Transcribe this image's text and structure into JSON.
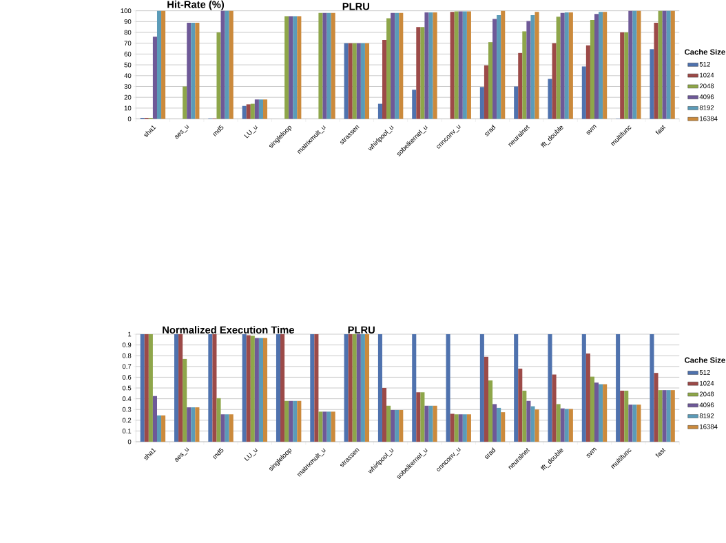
{
  "chart_data": [
    {
      "type": "bar",
      "title": "Hit-Rate (%)",
      "subtitle": "PLRU",
      "legend_title": "Cache Size",
      "legend": "right",
      "grid": "y",
      "categories": [
        "sha1",
        "aes_u",
        "md5",
        "LU_u",
        "singleloop",
        "matrixmult_u",
        "strassen",
        "whirlpool_u",
        "sobelkernel_u",
        "cnnconv_u",
        "srad",
        "neuralnet",
        "fft_double",
        "svm",
        "multifunc",
        "fast"
      ],
      "ylim": [
        0,
        100
      ],
      "yticks": [
        0,
        10,
        20,
        30,
        40,
        50,
        60,
        70,
        80,
        90,
        100
      ],
      "series": [
        {
          "name": "512",
          "color": "#4f72ae",
          "values": [
            1,
            0,
            0.5,
            12,
            0,
            0,
            70,
            14,
            27,
            0,
            29.5,
            30,
            37,
            48.5,
            0.3,
            64.5
          ]
        },
        {
          "name": "1024",
          "color": "#9c4a48",
          "values": [
            1,
            0,
            0.5,
            13.5,
            0,
            0,
            70,
            73,
            85,
            99,
            49.5,
            61,
            70,
            68,
            80,
            89
          ]
        },
        {
          "name": "2048",
          "color": "#8ea64a",
          "values": [
            1,
            30,
            80,
            14,
            95,
            98,
            70,
            93,
            85,
            99.5,
            71,
            81,
            94.5,
            91.5,
            80,
            100
          ]
        },
        {
          "name": "4096",
          "color": "#6e5998",
          "values": [
            76,
            89,
            100,
            18,
            95,
            98,
            70,
            98,
            98.5,
            99.5,
            92.5,
            90.5,
            98,
            97,
            100,
            100
          ]
        },
        {
          "name": "8192",
          "color": "#5b9bb8",
          "values": [
            100,
            89,
            100,
            18,
            95,
            98,
            70,
            98,
            98.5,
            99.5,
            96,
            96,
            98.5,
            99,
            100,
            100
          ]
        },
        {
          "name": "16384",
          "color": "#cb8a3c",
          "values": [
            100,
            89,
            100,
            18,
            95,
            98,
            70,
            98,
            98.5,
            99.5,
            100,
            99,
            98.5,
            99,
            100,
            100
          ]
        }
      ]
    },
    {
      "type": "bar",
      "title": "Normalized Execution Time",
      "subtitle": "PLRU",
      "legend_title": "Cache Size",
      "legend": "right",
      "grid": "y",
      "categories": [
        "sha1",
        "aes_u",
        "md5",
        "LU_u",
        "singleloop",
        "matrixmult_u",
        "strassen",
        "whirlpool_u",
        "sobelkernel_u",
        "cnnconv_u",
        "srad",
        "neuralnet",
        "fft_double",
        "svm",
        "multifunc",
        "fast"
      ],
      "ylim": [
        0,
        1
      ],
      "yticks": [
        0,
        0.1,
        0.2,
        0.3,
        0.4,
        0.5,
        0.6,
        0.7,
        0.8,
        0.9,
        1
      ],
      "series": [
        {
          "name": "512",
          "color": "#4f72ae",
          "values": [
            1,
            1,
            1,
            1,
            1,
            1,
            1,
            1,
            1,
            1,
            1,
            1,
            1,
            1,
            1,
            1
          ]
        },
        {
          "name": "1024",
          "color": "#9c4a48",
          "values": [
            1,
            1,
            1,
            0.99,
            1,
            1,
            1,
            0.5,
            0.46,
            0.26,
            0.79,
            0.68,
            0.625,
            0.82,
            0.475,
            0.64
          ]
        },
        {
          "name": "2048",
          "color": "#8ea64a",
          "values": [
            1,
            0.77,
            0.405,
            0.985,
            0.38,
            0.28,
            1,
            0.335,
            0.46,
            0.255,
            0.57,
            0.475,
            0.35,
            0.605,
            0.475,
            0.48
          ]
        },
        {
          "name": "4096",
          "color": "#6e5998",
          "values": [
            0.425,
            0.32,
            0.255,
            0.965,
            0.38,
            0.28,
            1,
            0.295,
            0.335,
            0.255,
            0.35,
            0.38,
            0.31,
            0.55,
            0.345,
            0.48
          ]
        },
        {
          "name": "8192",
          "color": "#5b9bb8",
          "values": [
            0.245,
            0.32,
            0.255,
            0.965,
            0.38,
            0.28,
            1,
            0.295,
            0.335,
            0.255,
            0.315,
            0.33,
            0.305,
            0.535,
            0.345,
            0.48
          ]
        },
        {
          "name": "16384",
          "color": "#cb8a3c",
          "values": [
            0.245,
            0.32,
            0.255,
            0.965,
            0.38,
            0.28,
            1,
            0.295,
            0.335,
            0.255,
            0.275,
            0.3,
            0.305,
            0.535,
            0.345,
            0.48
          ]
        }
      ]
    }
  ]
}
